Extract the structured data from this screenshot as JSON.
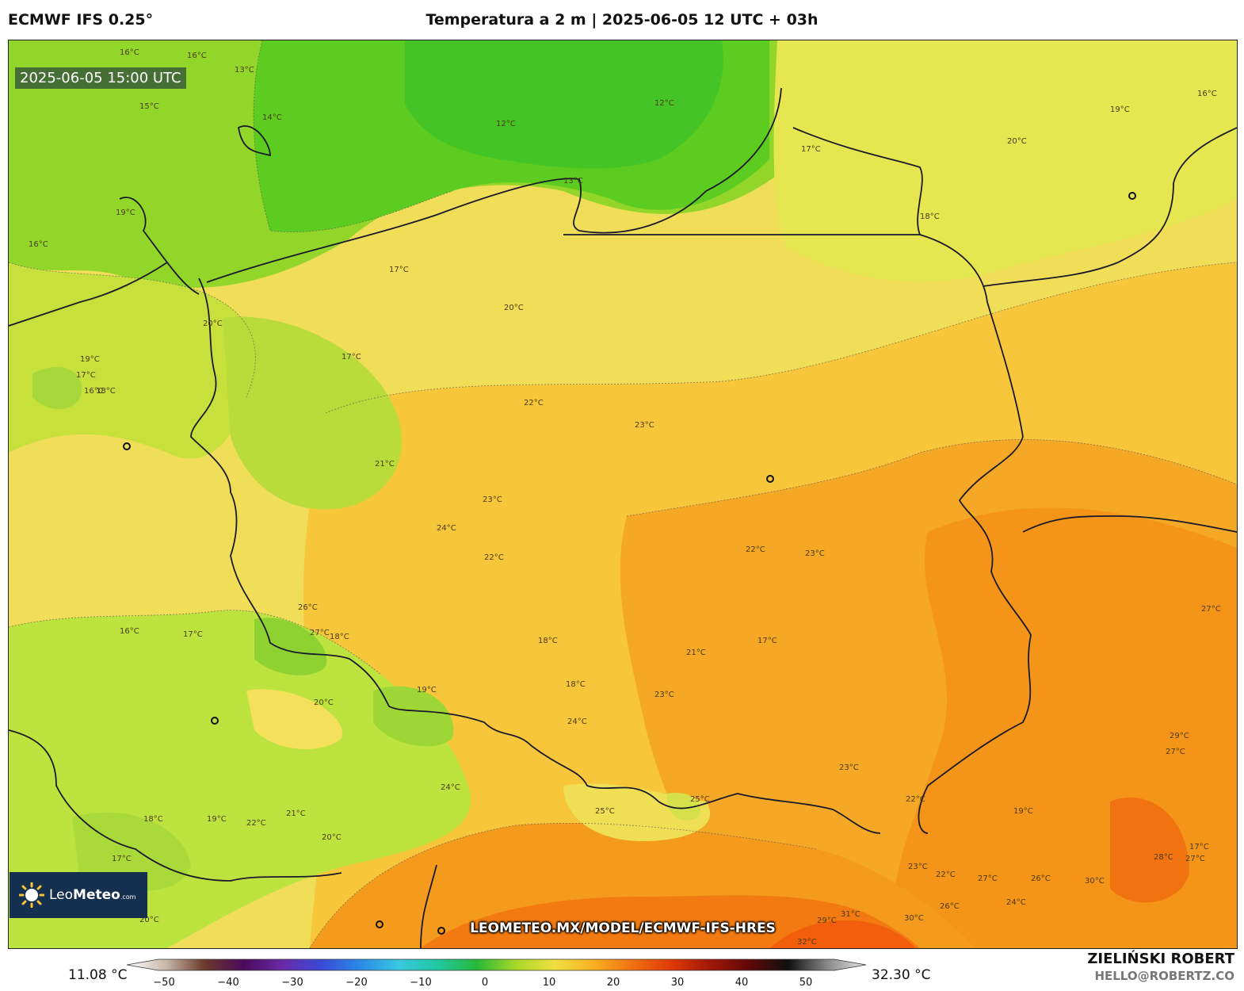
{
  "header": {
    "model": "ECMWF IFS 0.25°",
    "title": "Temperatura a 2 m | 2025-06-05 12 UTC + 03h"
  },
  "map": {
    "valid_time": "2025-06-05 15:00 UTC",
    "url": "LEOMETEO.MX/MODEL/ECMWF-IFS-HRES",
    "logo": {
      "main": "Leo",
      "bold": "Meteo",
      "suffix": ".com"
    },
    "contour_labels": [
      "16°C",
      "16°C",
      "13°C",
      "15°C",
      "14°C",
      "12°C",
      "12°C",
      "13°C",
      "17°C",
      "19°C",
      "18°C",
      "20°C",
      "19°C",
      "16°C",
      "16°C",
      "17°C",
      "20°C",
      "20°C",
      "17°C",
      "19°C",
      "17°C",
      "16°C",
      "18°C",
      "21°C",
      "22°C",
      "23°C",
      "23°C",
      "24°C",
      "22°C",
      "22°C",
      "23°C",
      "27°C",
      "26°C",
      "27°C",
      "18°C",
      "16°C",
      "17°C",
      "20°C",
      "19°C",
      "18°C",
      "21°C",
      "17°C",
      "18°C",
      "23°C",
      "24°C",
      "23°C",
      "22°C",
      "25°C",
      "25°C",
      "24°C",
      "19°C",
      "22°C",
      "21°C",
      "20°C",
      "18°C",
      "17°C",
      "19°C",
      "17°C",
      "27°C",
      "27°C",
      "28°C",
      "29°C",
      "30°C",
      "27°C",
      "26°C",
      "24°C",
      "22°C",
      "23°C",
      "26°C",
      "29°C",
      "31°C",
      "32°C",
      "30°C",
      "20°C"
    ],
    "colors": {
      "cool_green": "#46c92a",
      "light_green": "#b5e03a",
      "yellow": "#f0e45a",
      "orange": "#f6a51f",
      "dark_orange": "#f07a10",
      "red_orange": "#f25d0c"
    }
  },
  "colorbar": {
    "min_label": "11.08 °C",
    "max_label": "32.30 °C",
    "ticks": [
      "−50",
      "−40",
      "−30",
      "−20",
      "−10",
      "0",
      "10",
      "20",
      "30",
      "40",
      "50"
    ],
    "stops": [
      "#ffffff",
      "#c8b8a8",
      "#6a3a2a",
      "#4a0a5a",
      "#6a2aa8",
      "#3a4ad8",
      "#2a8ae8",
      "#38c8e0",
      "#20c8a0",
      "#28b838",
      "#a8d828",
      "#f0e040",
      "#f8b020",
      "#f07010",
      "#e03808",
      "#a01808",
      "#600808",
      "#101010",
      "#888888",
      "#e8e8e8"
    ]
  },
  "footer": {
    "author": "ZIELIŃSKI ROBERT",
    "email": "HELLO@ROBERTZ.CO"
  }
}
